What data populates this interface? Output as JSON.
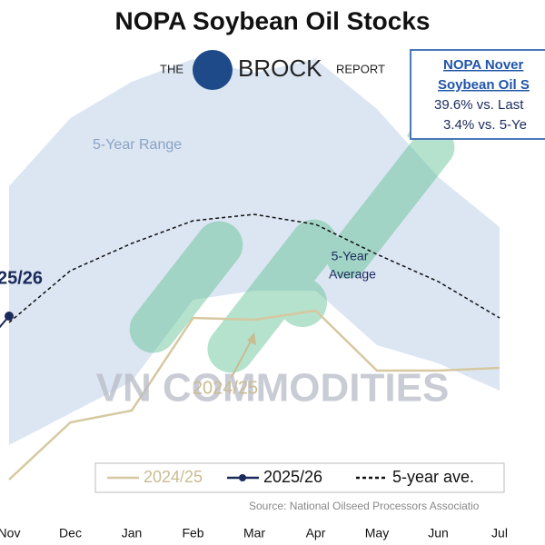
{
  "chart_data": {
    "type": "line",
    "title": "NOPA Soybean Oil Stocks",
    "logo": {
      "left": "THE",
      "middle": "BROCK",
      "right": "REPORT"
    },
    "info_box": [
      "NOPA Nover",
      "Soybean Oil S",
      "39.6% vs. Last",
      "3.4% vs. 5-Ye"
    ],
    "watermark": "VN COMMODITIES",
    "source": "Source: National Oilseed Processors Associatio",
    "categories": [
      "Nov",
      "Dec",
      "Jan",
      "Feb",
      "Mar",
      "Apr",
      "May",
      "Jun",
      "Jul"
    ],
    "ylim": [
      0,
      100
    ],
    "range": {
      "name": "5-Year Range",
      "color": "#dce6f3",
      "upper": [
        67,
        82,
        90,
        95,
        92,
        95,
        84,
        69,
        58
      ],
      "lower": [
        10,
        17,
        24,
        42,
        44,
        44,
        32,
        28,
        22
      ]
    },
    "series": [
      {
        "name": "2024/25",
        "color": "#d6c8a0",
        "style": "solid",
        "values": [
          2.4,
          15,
          17.6,
          38,
          37.6,
          39.6,
          26.4,
          26.4,
          27
        ]
      },
      {
        "name": "2025/26",
        "color": "#1b2a5c",
        "style": "marker",
        "values": [
          38.4,
          null,
          null,
          null,
          null,
          null,
          null,
          null,
          null
        ]
      },
      {
        "name": "5-year ave.",
        "color": "#111111",
        "style": "dashed",
        "values": [
          37,
          48.4,
          54.4,
          59.4,
          60.8,
          58.6,
          52,
          46,
          38
        ]
      }
    ],
    "annotations": [
      {
        "text": "5-Year",
        "x": 385,
        "y": 283,
        "color": "#1b2a5c"
      },
      {
        "text": "Average",
        "x": 388,
        "y": 303,
        "color": "#1b2a5c"
      },
      {
        "text": "2024/25",
        "x": 248,
        "y": 428,
        "color": "#c9bb92"
      },
      {
        "text": "25/26",
        "x": 22,
        "y": 307,
        "color": "#1b2a5c"
      }
    ]
  }
}
